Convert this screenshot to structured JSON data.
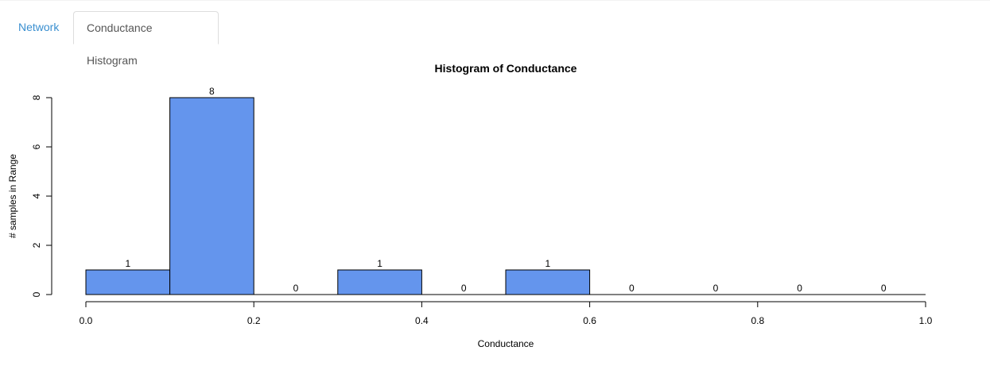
{
  "tabs": [
    {
      "label": "Network",
      "active": false
    },
    {
      "label": "Conductance Histogram",
      "active": true
    }
  ],
  "chart_data": {
    "type": "bar",
    "title": "Histogram of Conductance",
    "xlabel": "Conductance",
    "ylabel": "# samples in Range",
    "bin_edges": [
      0.0,
      0.1,
      0.2,
      0.3,
      0.4,
      0.5,
      0.6,
      0.7,
      0.8,
      0.9,
      1.0
    ],
    "values": [
      1,
      8,
      0,
      1,
      0,
      1,
      0,
      0,
      0,
      0
    ],
    "bar_labels": [
      "1",
      "8",
      "0",
      "1",
      "0",
      "1",
      "0",
      "0",
      "0",
      "0"
    ],
    "xlim": [
      0.0,
      1.0
    ],
    "ylim": [
      0,
      8
    ],
    "x_ticks": [
      0.0,
      0.2,
      0.4,
      0.6,
      0.8,
      1.0
    ],
    "x_tick_labels": [
      "0.0",
      "0.2",
      "0.4",
      "0.6",
      "0.8",
      "1.0"
    ],
    "y_ticks": [
      0,
      2,
      4,
      6,
      8
    ],
    "y_tick_labels": [
      "0",
      "2",
      "4",
      "6",
      "8"
    ],
    "bar_color": "#6495ed",
    "grid": false,
    "legend": "none"
  }
}
